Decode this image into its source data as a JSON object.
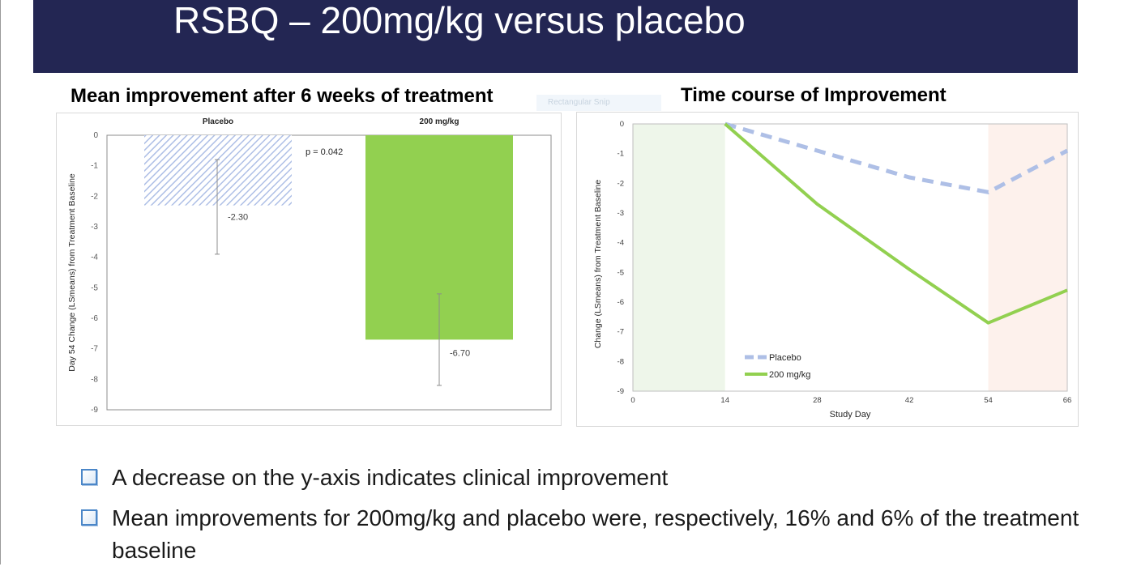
{
  "slide": {
    "title": "RSBQ – 200mg/kg versus placebo",
    "overlay_label": "Rectangular Snip"
  },
  "colors": {
    "banner": "#232653",
    "placebo": "#aebfe6",
    "treatment": "#92d050",
    "baseline_band": "#eef6ea",
    "followup_band": "#fdf1ec",
    "bullet_icon": "#4a86c8"
  },
  "bullets": [
    "A decrease on the y-axis indicates clinical improvement",
    "Mean improvements for 200mg/kg and placebo were, respectively, 16% and 6% of the treatment baseline"
  ],
  "chart_data": [
    {
      "type": "bar",
      "title": "Mean improvement after 6 weeks of treatment",
      "ylabel": "Day 54 Change (LSmeans)  from Treatment Baseline",
      "xlabel": "",
      "categories": [
        "Placebo",
        "200 mg/kg"
      ],
      "values": [
        -2.3,
        -6.7
      ],
      "value_labels": [
        "-2.30",
        "-6.70"
      ],
      "error_bars": [
        {
          "low": -3.9,
          "high": -0.8
        },
        {
          "low": -8.2,
          "high": -5.2
        }
      ],
      "annotation": "p = 0.042",
      "ylim": [
        -9,
        0
      ],
      "yticks": [
        "0",
        "-1",
        "-2",
        "-3",
        "-4",
        "-5",
        "-6",
        "-7",
        "-8",
        "-9"
      ],
      "grid": false,
      "category_labels_position": "top"
    },
    {
      "type": "line",
      "title": "Time course of Improvement",
      "xlabel": "Study Day",
      "ylabel": "Change (LSmeans) from Treatment Baseline",
      "xlim": [
        0,
        66
      ],
      "ylim": [
        -9,
        0
      ],
      "xticks": [
        "0",
        "14",
        "28",
        "42",
        "54",
        "66"
      ],
      "yticks": [
        "0",
        "-1",
        "-2",
        "-3",
        "-4",
        "-5",
        "-6",
        "-7",
        "-8",
        "-9"
      ],
      "shaded_ranges": [
        {
          "from": 0,
          "to": 14,
          "color": "#eef6ea"
        },
        {
          "from": 54,
          "to": 66,
          "color": "#fdf1ec"
        }
      ],
      "series": [
        {
          "name": "Placebo",
          "style": "dashed",
          "x": [
            14,
            28,
            42,
            54,
            66
          ],
          "y": [
            0,
            -0.9,
            -1.8,
            -2.3,
            -0.9
          ]
        },
        {
          "name": "200 mg/kg",
          "style": "solid",
          "x": [
            14,
            28,
            42,
            54,
            66
          ],
          "y": [
            0,
            -2.7,
            -4.9,
            -6.7,
            -5.6
          ]
        }
      ],
      "legend_position": "bottom-left",
      "grid": false
    }
  ]
}
